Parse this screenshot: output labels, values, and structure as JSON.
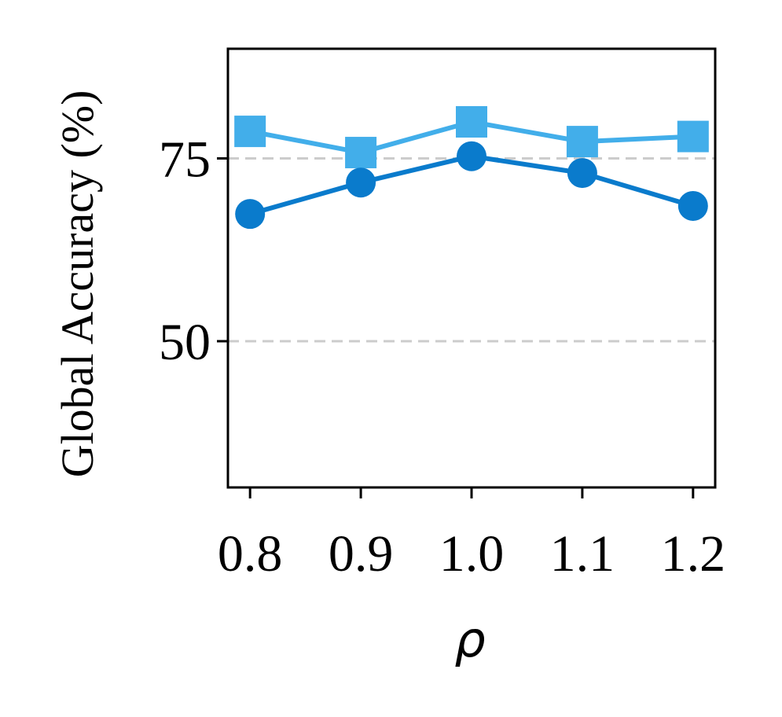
{
  "chart_data": {
    "type": "line",
    "xlabel": "ρ",
    "ylabel": "Global Accuracy (%)",
    "x": [
      0.8,
      0.9,
      1.0,
      1.1,
      1.2
    ],
    "x_tick_labels": [
      "0.8",
      "0.9",
      "1.0",
      "1.1",
      "1.2"
    ],
    "y_ticks": [
      50,
      75
    ],
    "y_tick_labels": [
      "50",
      "75"
    ],
    "xlim": [
      0.78,
      1.22
    ],
    "ylim": [
      30,
      90
    ],
    "grid": "horizontal dashed at y ticks",
    "legend": "none",
    "series": [
      {
        "marker": "square",
        "color": "#42aeea",
        "values": [
          78.7,
          75.8,
          80.0,
          77.3,
          78.0
        ]
      },
      {
        "marker": "circle",
        "color": "#0a7bcc",
        "values": [
          67.4,
          71.7,
          75.3,
          73.0,
          68.5
        ]
      }
    ]
  }
}
